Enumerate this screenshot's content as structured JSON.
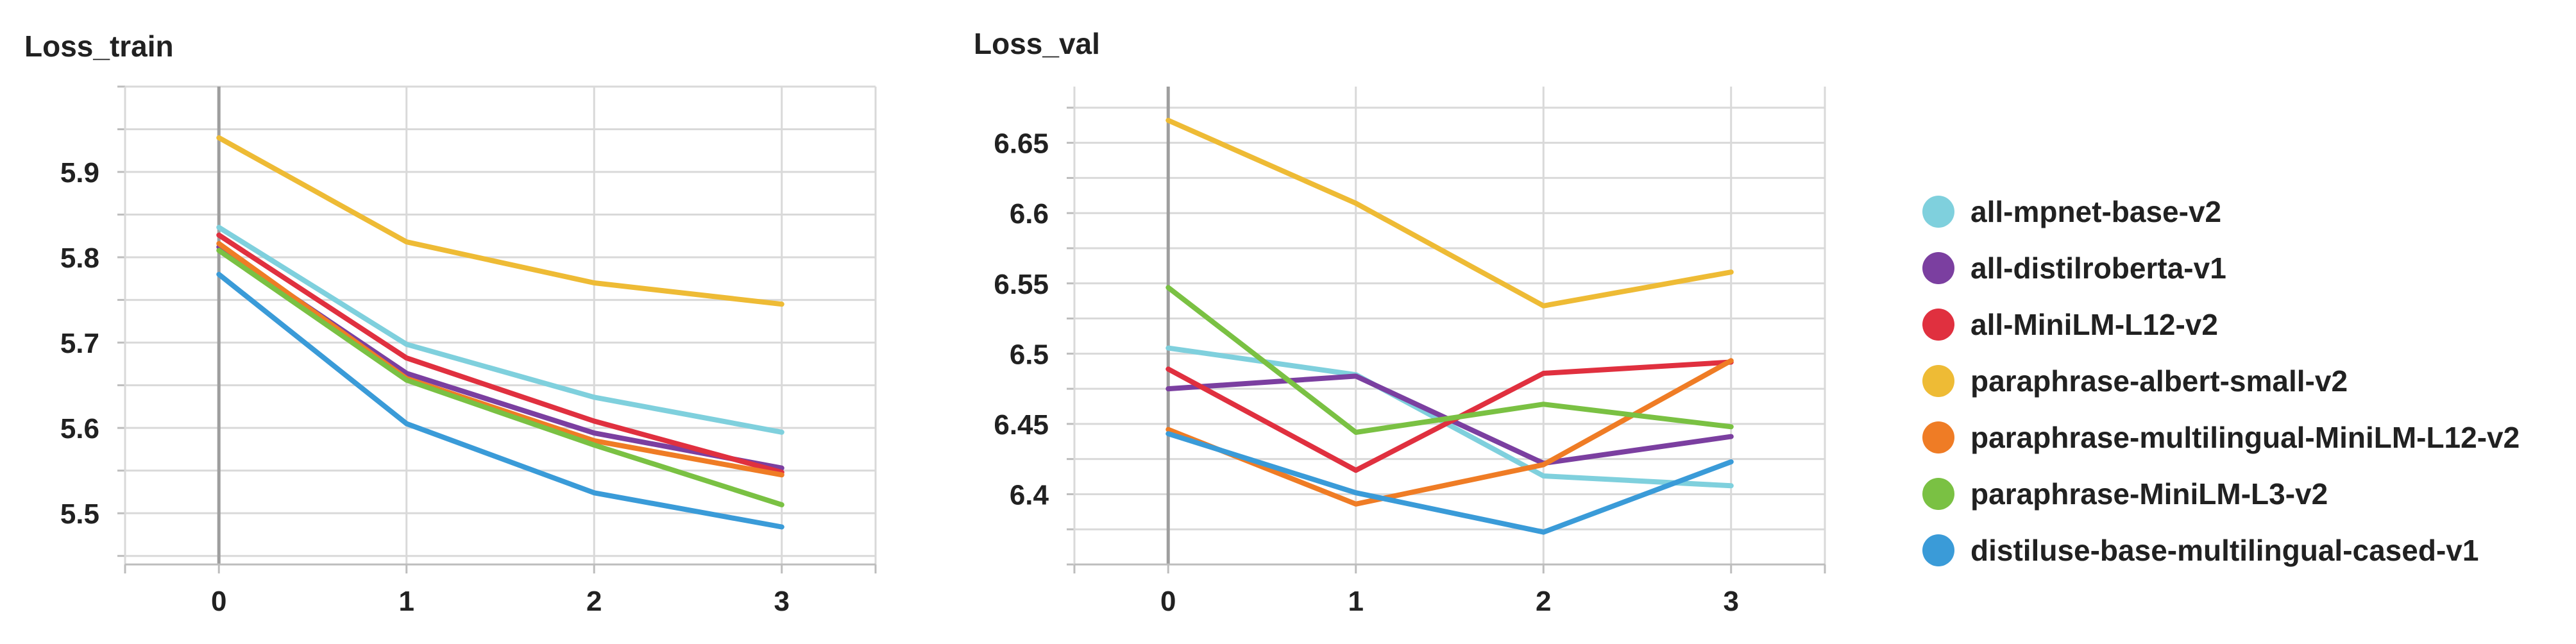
{
  "chart_data": [
    {
      "type": "line",
      "title": "Loss_train",
      "x": [
        0,
        1,
        2,
        3
      ],
      "xticks": [
        "0",
        "1",
        "2",
        "3"
      ],
      "yticks": [
        "5.5",
        "5.6",
        "5.7",
        "5.8",
        "5.9"
      ],
      "ylim": [
        5.44,
        6.0
      ],
      "xlim": [
        -0.5,
        3.5
      ],
      "grid": true,
      "series": [
        {
          "name": "all-mpnet-base-v2",
          "color": "#7fd0dd",
          "values": [
            5.835,
            5.698,
            5.636,
            5.595
          ]
        },
        {
          "name": "all-distilroberta-v1",
          "color": "#7b3fa0",
          "values": [
            5.812,
            5.664,
            5.594,
            5.553
          ]
        },
        {
          "name": "all-MiniLM-L12-v2",
          "color": "#e0303f",
          "values": [
            5.826,
            5.682,
            5.608,
            5.548
          ]
        },
        {
          "name": "paraphrase-albert-small-v2",
          "color": "#eebb35",
          "values": [
            5.94,
            5.818,
            5.77,
            5.745
          ]
        },
        {
          "name": "paraphrase-multilingual-MiniLM-L12-v2",
          "color": "#ef7c25",
          "values": [
            5.816,
            5.658,
            5.585,
            5.545
          ]
        },
        {
          "name": "paraphrase-MiniLM-L3-v2",
          "color": "#7ac143",
          "values": [
            5.808,
            5.656,
            5.58,
            5.51
          ]
        },
        {
          "name": "distiluse-base-multilingual-cased-v1",
          "color": "#3a9bd8",
          "values": [
            5.78,
            5.605,
            5.524,
            5.484
          ]
        }
      ]
    },
    {
      "type": "line",
      "title": "Loss_val",
      "x": [
        0,
        1,
        2,
        3
      ],
      "xticks": [
        "0",
        "1",
        "2",
        "3"
      ],
      "yticks": [
        "6.4",
        "6.45",
        "6.5",
        "6.55",
        "6.6",
        "6.65"
      ],
      "ylim": [
        6.35,
        6.69
      ],
      "xlim": [
        -0.5,
        3.5
      ],
      "grid": true,
      "series": [
        {
          "name": "all-mpnet-base-v2",
          "color": "#7fd0dd",
          "values": [
            6.504,
            6.485,
            6.413,
            6.406
          ]
        },
        {
          "name": "all-distilroberta-v1",
          "color": "#7b3fa0",
          "values": [
            6.475,
            6.484,
            6.422,
            6.441
          ]
        },
        {
          "name": "all-MiniLM-L12-v2",
          "color": "#e0303f",
          "values": [
            6.489,
            6.417,
            6.486,
            6.494
          ]
        },
        {
          "name": "paraphrase-albert-small-v2",
          "color": "#eebb35",
          "values": [
            6.666,
            6.607,
            6.534,
            6.558
          ]
        },
        {
          "name": "paraphrase-multilingual-MiniLM-L12-v2",
          "color": "#ef7c25",
          "values": [
            6.446,
            6.393,
            6.421,
            6.495
          ]
        },
        {
          "name": "paraphrase-MiniLM-L3-v2",
          "color": "#7ac143",
          "values": [
            6.547,
            6.444,
            6.464,
            6.448
          ]
        },
        {
          "name": "distiluse-base-multilingual-cased-v1",
          "color": "#3a9bd8",
          "values": [
            6.443,
            6.401,
            6.373,
            6.423
          ]
        }
      ]
    }
  ],
  "legend": {
    "placement": "right",
    "items": [
      {
        "label": "all-mpnet-base-v2",
        "color": "#7fd0dd"
      },
      {
        "label": "all-distilroberta-v1",
        "color": "#7b3fa0"
      },
      {
        "label": "all-MiniLM-L12-v2",
        "color": "#e0303f"
      },
      {
        "label": "paraphrase-albert-small-v2",
        "color": "#eebb35"
      },
      {
        "label": "paraphrase-multilingual-MiniLM-L12-v2",
        "color": "#ef7c25"
      },
      {
        "label": "paraphrase-MiniLM-L3-v2",
        "color": "#7ac143"
      },
      {
        "label": "distiluse-base-multilingual-cased-v1",
        "color": "#3a9bd8"
      }
    ]
  }
}
